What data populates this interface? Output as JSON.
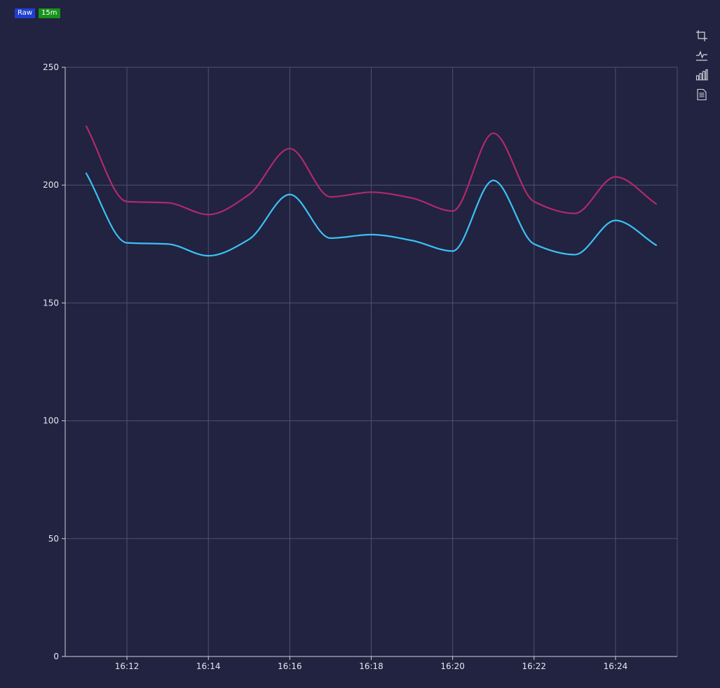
{
  "badges": {
    "raw": {
      "label": "Raw",
      "color": "#1f3fd1"
    },
    "interval": {
      "label": "15m",
      "color": "#17921a"
    }
  },
  "toolbar": [
    {
      "icon": "crop-icon"
    },
    {
      "icon": "line-chart-icon"
    },
    {
      "icon": "bar-chart-icon"
    },
    {
      "icon": "document-icon"
    }
  ],
  "chart_data": {
    "type": "line",
    "title": "",
    "xlabel": "",
    "ylabel": "",
    "x": [
      "16:11",
      "16:12",
      "16:13",
      "16:14",
      "16:15",
      "16:16",
      "16:17",
      "16:18",
      "16:19",
      "16:20",
      "16:21",
      "16:22",
      "16:23",
      "16:24",
      "16:25"
    ],
    "xticks": [
      "16:12",
      "16:14",
      "16:16",
      "16:18",
      "16:20",
      "16:22",
      "16:24"
    ],
    "ylim": [
      0,
      250
    ],
    "yticks": [
      0,
      50,
      100,
      150,
      200,
      250
    ],
    "grid": true,
    "legend": "none",
    "series": [
      {
        "color": "#b02a6a",
        "values": [
          225,
          193,
          192.5,
          187.5,
          196,
          215.5,
          195,
          197,
          194.5,
          189,
          222,
          193,
          188,
          203.5,
          192
        ]
      },
      {
        "color": "#3cc0f5",
        "values": [
          205,
          175.5,
          175,
          170,
          177,
          196,
          177.5,
          179,
          176.5,
          172,
          202,
          175,
          170.5,
          185,
          174.5
        ]
      }
    ]
  }
}
